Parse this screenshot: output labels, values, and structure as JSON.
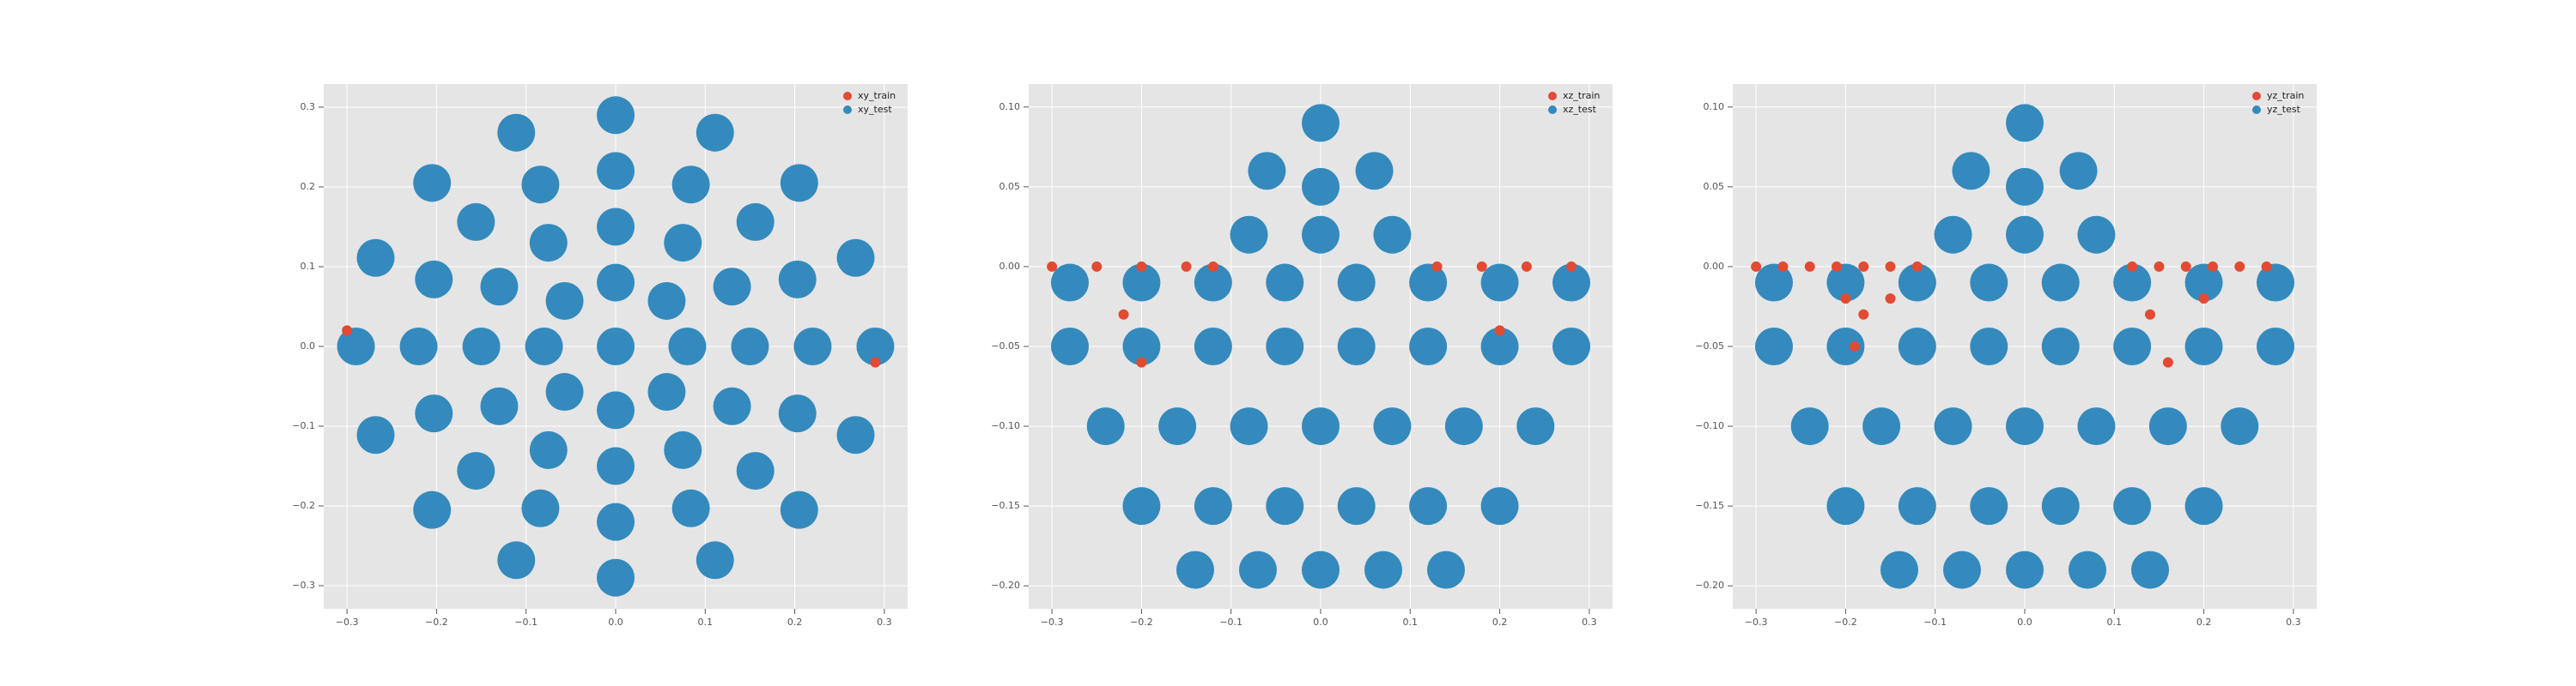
{
  "chart_data": [
    {
      "type": "scatter",
      "legend": "upper right",
      "grid": true,
      "xlim": [
        -0.326,
        0.326
      ],
      "ylim": [
        -0.329,
        0.329
      ],
      "xticks": [
        {
          "value": -0.3,
          "label": "−0.3"
        },
        {
          "value": -0.2,
          "label": "−0.2"
        },
        {
          "value": -0.1,
          "label": "−0.1"
        },
        {
          "value": 0,
          "label": "0.0"
        },
        0.1,
        0.2,
        0.3
      ],
      "yticks": [
        {
          "value": -0.3,
          "label": "−0.3"
        },
        {
          "value": -0.2,
          "label": "−0.2"
        },
        {
          "value": -0.1,
          "label": "−0.1"
        },
        {
          "value": 0,
          "label": "0.0"
        },
        0.1,
        0.2,
        0.3
      ],
      "series": [
        {
          "name": "xy_train",
          "color": "#E24A33",
          "x": [
            -0.3,
            0.29
          ],
          "y": [
            0.02,
            -0.02
          ]
        },
        {
          "name": "xy_test",
          "color": "#348ABD",
          "x": [
            0,
            0.08,
            0.057,
            0,
            -0.057,
            -0.08,
            -0.057,
            0,
            0.057,
            0.15,
            0.13,
            0.075,
            0,
            -0.075,
            -0.13,
            -0.15,
            -0.13,
            -0.075,
            0,
            0.075,
            0.13,
            0.22,
            0.203,
            0.156,
            0.084,
            0,
            -0.084,
            -0.156,
            -0.203,
            -0.22,
            -0.203,
            -0.156,
            -0.084,
            0,
            0.084,
            0.156,
            0.203,
            0.29,
            0.268,
            0.205,
            0.111,
            0,
            -0.111,
            -0.205,
            -0.268,
            -0.29,
            -0.268,
            -0.205,
            -0.111,
            0,
            0.111,
            0.205,
            0.268
          ],
          "y": [
            0,
            0,
            0.057,
            0.08,
            0.057,
            0,
            -0.057,
            -0.08,
            -0.057,
            0,
            0.075,
            0.13,
            0.15,
            0.13,
            0.075,
            0,
            -0.075,
            -0.13,
            -0.15,
            -0.13,
            -0.075,
            0,
            0.084,
            0.156,
            0.203,
            0.22,
            0.203,
            0.156,
            0.084,
            0,
            -0.084,
            -0.156,
            -0.203,
            -0.22,
            -0.203,
            -0.156,
            -0.084,
            0,
            0.111,
            0.205,
            0.268,
            0.29,
            0.268,
            0.205,
            0.111,
            0,
            -0.111,
            -0.205,
            -0.268,
            -0.29,
            -0.268,
            -0.205,
            -0.111
          ]
        }
      ]
    },
    {
      "type": "scatter",
      "legend": "upper right",
      "grid": true,
      "xlim": [
        -0.326,
        0.326
      ],
      "ylim": [
        -0.2144,
        0.1144
      ],
      "xticks": [
        {
          "value": -0.3,
          "label": "−0.3"
        },
        {
          "value": -0.2,
          "label": "−0.2"
        },
        {
          "value": -0.1,
          "label": "−0.1"
        },
        {
          "value": 0,
          "label": "0.0"
        },
        0.1,
        0.2,
        0.3
      ],
      "yticks": [
        {
          "value": -0.2,
          "label": "−0.20"
        },
        {
          "value": -0.15,
          "label": "−0.15"
        },
        {
          "value": -0.1,
          "label": "−0.10"
        },
        {
          "value": -0.05,
          "label": "−0.05"
        },
        {
          "value": 0,
          "label": "0.00"
        },
        0.05,
        {
          "value": 0.1,
          "label": "0.10"
        }
      ],
      "series": [
        {
          "name": "xz_train",
          "color": "#E24A33",
          "x": [
            -0.3,
            -0.25,
            -0.2,
            -0.15,
            -0.12,
            0.13,
            0.18,
            0.23,
            0.28,
            -0.22,
            0.2,
            -0.2
          ],
          "y": [
            0,
            0,
            0,
            0,
            0,
            0,
            0,
            0,
            0,
            -0.03,
            -0.04,
            -0.06
          ]
        },
        {
          "name": "xz_test",
          "color": "#348ABD",
          "x": [
            -0.28,
            -0.2,
            -0.12,
            -0.04,
            0.04,
            0.12,
            0.2,
            0.28,
            -0.28,
            -0.2,
            -0.12,
            -0.04,
            0.04,
            0.12,
            0.2,
            0.28,
            -0.24,
            -0.16,
            -0.08,
            0,
            0.08,
            0.16,
            0.24,
            -0.2,
            -0.12,
            -0.04,
            0.04,
            0.12,
            0.2,
            -0.14,
            -0.07,
            0,
            0.07,
            0.14,
            0,
            -0.06,
            0,
            0.06,
            -0.08,
            0,
            0.08
          ],
          "y": [
            -0.01,
            -0.01,
            -0.01,
            -0.01,
            -0.01,
            -0.01,
            -0.01,
            -0.01,
            -0.05,
            -0.05,
            -0.05,
            -0.05,
            -0.05,
            -0.05,
            -0.05,
            -0.05,
            -0.1,
            -0.1,
            -0.1,
            -0.1,
            -0.1,
            -0.1,
            -0.1,
            -0.15,
            -0.15,
            -0.15,
            -0.15,
            -0.15,
            -0.15,
            -0.19,
            -0.19,
            -0.19,
            -0.19,
            -0.19,
            0.09,
            0.06,
            0.05,
            0.06,
            0.02,
            0.02,
            0.02
          ]
        }
      ]
    },
    {
      "type": "scatter",
      "legend": "upper right",
      "grid": true,
      "xlim": [
        -0.326,
        0.326
      ],
      "ylim": [
        -0.2144,
        0.1144
      ],
      "xticks": [
        {
          "value": -0.3,
          "label": "−0.3"
        },
        {
          "value": -0.2,
          "label": "−0.2"
        },
        {
          "value": -0.1,
          "label": "−0.1"
        },
        {
          "value": 0,
          "label": "0.0"
        },
        0.1,
        0.2,
        0.3
      ],
      "yticks": [
        {
          "value": -0.2,
          "label": "−0.20"
        },
        {
          "value": -0.15,
          "label": "−0.15"
        },
        {
          "value": -0.1,
          "label": "−0.10"
        },
        {
          "value": -0.05,
          "label": "−0.05"
        },
        {
          "value": 0,
          "label": "0.00"
        },
        0.05,
        {
          "value": 0.1,
          "label": "0.10"
        }
      ],
      "series": [
        {
          "name": "yz_train",
          "color": "#E24A33",
          "x": [
            -0.3,
            -0.27,
            -0.24,
            -0.21,
            -0.18,
            -0.15,
            -0.12,
            0.12,
            0.15,
            0.18,
            0.21,
            0.24,
            0.27,
            -0.2,
            -0.18,
            -0.15,
            0.14,
            0.2,
            -0.19,
            0.16
          ],
          "y": [
            0,
            0,
            0,
            0,
            0,
            0,
            0,
            0,
            0,
            0,
            0,
            0,
            0,
            -0.02,
            -0.03,
            -0.02,
            -0.03,
            -0.02,
            -0.05,
            -0.06
          ]
        },
        {
          "name": "yz_test",
          "color": "#348ABD",
          "x": [
            -0.28,
            -0.2,
            -0.12,
            -0.04,
            0.04,
            0.12,
            0.2,
            0.28,
            -0.28,
            -0.2,
            -0.12,
            -0.04,
            0.04,
            0.12,
            0.2,
            0.28,
            -0.24,
            -0.16,
            -0.08,
            0,
            0.08,
            0.16,
            0.24,
            -0.2,
            -0.12,
            -0.04,
            0.04,
            0.12,
            0.2,
            -0.14,
            -0.07,
            0,
            0.07,
            0.14,
            0,
            -0.06,
            0,
            0.06,
            -0.08,
            0,
            0.08
          ],
          "y": [
            -0.01,
            -0.01,
            -0.01,
            -0.01,
            -0.01,
            -0.01,
            -0.01,
            -0.01,
            -0.05,
            -0.05,
            -0.05,
            -0.05,
            -0.05,
            -0.05,
            -0.05,
            -0.05,
            -0.1,
            -0.1,
            -0.1,
            -0.1,
            -0.1,
            -0.1,
            -0.1,
            -0.15,
            -0.15,
            -0.15,
            -0.15,
            -0.15,
            -0.15,
            -0.19,
            -0.19,
            -0.19,
            -0.19,
            -0.19,
            0.09,
            0.06,
            0.05,
            0.06,
            0.02,
            0.02,
            0.02
          ]
        }
      ]
    }
  ]
}
